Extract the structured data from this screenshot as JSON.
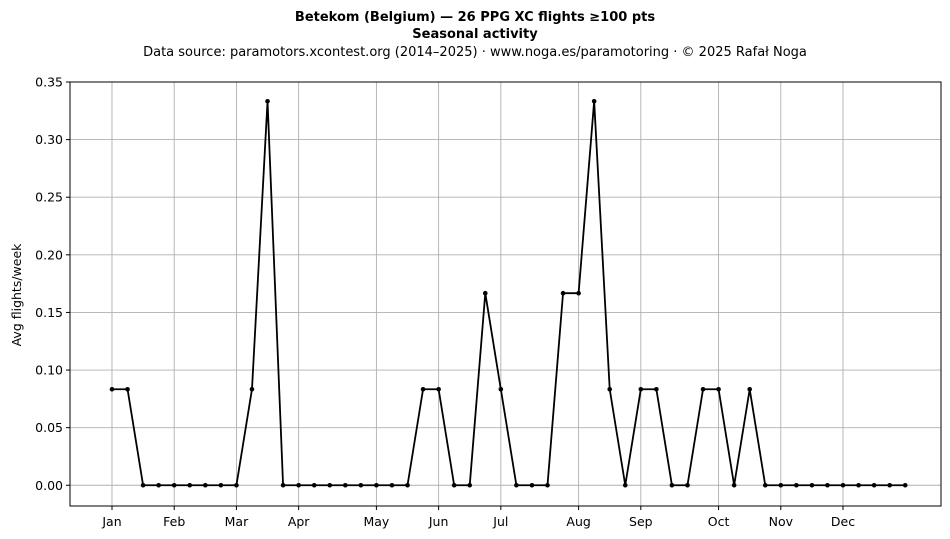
{
  "chart_data": {
    "type": "line",
    "title": "Betekom (Belgium)  —  26 PPG XC flights ≥100 pts",
    "subtitle": "Seasonal activity",
    "source": "Data source: paramotors.xcontest.org (2014–2025)  ·  www.noga.es/paramotoring  ·  © 2025 Rafał Noga",
    "xlabel": "",
    "ylabel": "Avg flights/week",
    "ylim": [
      -0.018,
      0.35
    ],
    "yticks": [
      0.0,
      0.05,
      0.1,
      0.15,
      0.2,
      0.25,
      0.3,
      0.35
    ],
    "yticklabels": [
      "0.00",
      "0.05",
      "0.10",
      "0.15",
      "0.20",
      "0.25",
      "0.30",
      "0.35"
    ],
    "xlim": [
      -1.7,
      54.3
    ],
    "xticks": [
      1,
      5,
      9,
      13,
      18,
      22,
      26,
      31,
      35,
      40,
      44,
      48
    ],
    "xticklabels": [
      "Jan",
      "Feb",
      "Mar",
      "Apr",
      "May",
      "Jun",
      "Jul",
      "Aug",
      "Sep",
      "Oct",
      "Nov",
      "Dec"
    ],
    "grid": true,
    "line_color": "#000000",
    "grid_color": "#b0b0b0",
    "series": [
      {
        "x": [
          1,
          2,
          3,
          4,
          5,
          6,
          7,
          8,
          9,
          10,
          11,
          12,
          13,
          14,
          15,
          16,
          17,
          18,
          19,
          20,
          21,
          22,
          23,
          24,
          25,
          26,
          27,
          28,
          29,
          30,
          31,
          32,
          33,
          34,
          35,
          36,
          37,
          38,
          39,
          40,
          41,
          42,
          43,
          44,
          45,
          46,
          47,
          48,
          49,
          50,
          51,
          52
        ],
        "values": [
          0.0833,
          0.0833,
          0,
          0,
          0,
          0,
          0,
          0,
          0,
          0.0833,
          0.3333,
          0,
          0,
          0,
          0,
          0,
          0,
          0,
          0,
          0,
          0.0833,
          0.0833,
          0,
          0,
          0.1667,
          0.0833,
          0,
          0,
          0,
          0.1667,
          0.1667,
          0.3333,
          0.0833,
          0,
          0.0833,
          0.0833,
          0,
          0,
          0.0833,
          0.0833,
          0,
          0.0833,
          0,
          0,
          0,
          0,
          0,
          0,
          0,
          0,
          0,
          0
        ]
      }
    ]
  }
}
